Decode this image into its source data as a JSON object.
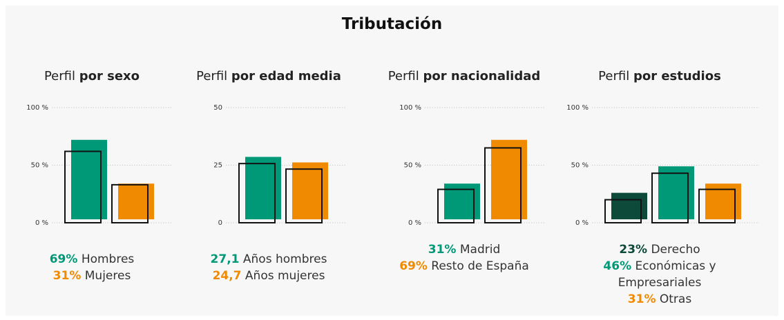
{
  "title": "Tributación",
  "chart_data": [
    {
      "type": "bar",
      "title_lead": "Perfil",
      "title": "por sexo",
      "categories": [
        "Hombres",
        "Mujeres"
      ],
      "values": [
        69,
        31
      ],
      "value_labels": [
        "69%",
        "31%"
      ],
      "outline_values": [
        62,
        33
      ],
      "colors": [
        "#009977",
        "#f08a00"
      ],
      "ylim": [
        0,
        100
      ],
      "yticks": [
        {
          "value": 0,
          "label": "0 %"
        },
        {
          "value": 50,
          "label": "50 %"
        },
        {
          "value": 100,
          "label": "100 %"
        }
      ],
      "grid": true
    },
    {
      "type": "bar",
      "title_lead": "Perfil",
      "title": "por edad media",
      "categories": [
        "Años hombres",
        "Años mujeres"
      ],
      "values": [
        27.1,
        24.7
      ],
      "value_labels": [
        "27,1",
        "24,7"
      ],
      "outline_values": [
        25.7,
        23.3
      ],
      "colors": [
        "#009977",
        "#f08a00"
      ],
      "ylim": [
        0,
        50
      ],
      "yticks": [
        0,
        25,
        50
      ],
      "grid": true
    },
    {
      "type": "bar",
      "title_lead": "Perfil",
      "title": "por nacionalidad",
      "categories": [
        "Madrid",
        "Resto de España"
      ],
      "values": [
        31,
        69
      ],
      "value_labels": [
        "31%",
        "69%"
      ],
      "outline_values": [
        29,
        65
      ],
      "colors": [
        "#009977",
        "#f08a00"
      ],
      "ylim": [
        0,
        100
      ],
      "yticks": [
        {
          "value": 0,
          "label": "0 %"
        },
        {
          "value": 50,
          "label": "50 %"
        },
        {
          "value": 100,
          "label": "100 %"
        }
      ],
      "grid": true
    },
    {
      "type": "bar",
      "title_lead": "Perfil",
      "title": "por estudios",
      "categories": [
        "Derecho",
        "Económicas y Empresariales",
        "Otras"
      ],
      "values": [
        23,
        46,
        31
      ],
      "value_labels": [
        "23%",
        "46%",
        "31%"
      ],
      "outline_values": [
        20,
        43,
        29
      ],
      "colors": [
        "#0d4a3a",
        "#009977",
        "#f08a00"
      ],
      "ylim": [
        0,
        100
      ],
      "yticks": [
        {
          "value": 0,
          "label": "0 %"
        },
        {
          "value": 50,
          "label": "50 %"
        },
        {
          "value": 100,
          "label": "100 %"
        }
      ],
      "grid": true
    }
  ]
}
